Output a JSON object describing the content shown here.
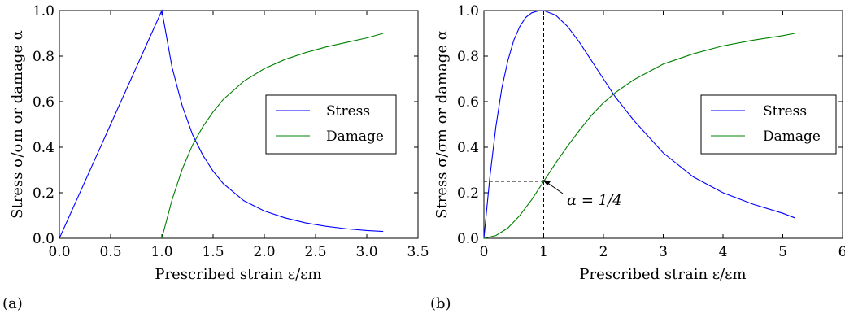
{
  "chart_data": [
    {
      "type": "line",
      "panel_label": "(a)",
      "xlabel": "Prescribed strain ε/εm",
      "ylabel": "Stress σ/σm or damage α",
      "xlim": [
        0.0,
        3.5
      ],
      "ylim": [
        0.0,
        1.0
      ],
      "xticks": [
        "0.0",
        "0.5",
        "1.0",
        "1.5",
        "2.0",
        "2.5",
        "3.0",
        "3.5"
      ],
      "yticks": [
        "0.0",
        "0.2",
        "0.4",
        "0.6",
        "0.8",
        "1.0"
      ],
      "grid": false,
      "legend_position": "center-right",
      "series": [
        {
          "name": "Stress",
          "color": "#0000ff",
          "x": [
            0.0,
            1.0,
            1.1,
            1.2,
            1.3,
            1.4,
            1.5,
            1.6,
            1.8,
            2.0,
            2.2,
            2.4,
            2.6,
            2.8,
            3.0,
            3.16
          ],
          "y": [
            0.0,
            1.0,
            0.75,
            0.58,
            0.455,
            0.365,
            0.295,
            0.24,
            0.165,
            0.12,
            0.09,
            0.068,
            0.053,
            0.042,
            0.034,
            0.03
          ]
        },
        {
          "name": "Damage",
          "color": "#008000",
          "x": [
            1.0,
            1.1,
            1.2,
            1.3,
            1.4,
            1.5,
            1.6,
            1.8,
            2.0,
            2.2,
            2.4,
            2.6,
            2.8,
            3.0,
            3.16
          ],
          "y": [
            0.0,
            0.17,
            0.305,
            0.41,
            0.49,
            0.555,
            0.61,
            0.69,
            0.745,
            0.785,
            0.815,
            0.84,
            0.86,
            0.88,
            0.9
          ]
        }
      ]
    },
    {
      "type": "line",
      "panel_label": "(b)",
      "xlabel": "Prescribed strain ε/εm",
      "ylabel": "Stress σ/σm or damage α",
      "xlim": [
        0,
        6
      ],
      "ylim": [
        0.0,
        1.0
      ],
      "xticks": [
        "0",
        "1",
        "2",
        "3",
        "4",
        "5",
        "6"
      ],
      "yticks": [
        "0.0",
        "0.2",
        "0.4",
        "0.6",
        "0.8",
        "1.0"
      ],
      "grid": false,
      "legend_position": "center-right",
      "annotation": {
        "text": "α = 1/4",
        "x": 1.0,
        "y": 0.25
      },
      "series": [
        {
          "name": "Stress",
          "color": "#0000ff",
          "x": [
            0.0,
            0.1,
            0.2,
            0.3,
            0.4,
            0.5,
            0.6,
            0.7,
            0.8,
            0.9,
            1.0,
            1.2,
            1.4,
            1.6,
            1.8,
            2.0,
            2.2,
            2.5,
            3.0,
            3.5,
            4.0,
            4.5,
            5.0,
            5.2
          ],
          "y": [
            0.0,
            0.27,
            0.49,
            0.66,
            0.78,
            0.87,
            0.93,
            0.97,
            0.99,
            0.998,
            1.0,
            0.98,
            0.93,
            0.86,
            0.78,
            0.7,
            0.62,
            0.52,
            0.375,
            0.27,
            0.2,
            0.15,
            0.11,
            0.09
          ]
        },
        {
          "name": "Damage",
          "color": "#008000",
          "x": [
            0.0,
            0.2,
            0.4,
            0.6,
            0.8,
            1.0,
            1.2,
            1.4,
            1.6,
            1.8,
            2.0,
            2.2,
            2.5,
            3.0,
            3.5,
            4.0,
            4.5,
            5.0,
            5.2
          ],
          "y": [
            0.0,
            0.012,
            0.045,
            0.1,
            0.17,
            0.25,
            0.33,
            0.405,
            0.475,
            0.54,
            0.595,
            0.64,
            0.695,
            0.765,
            0.81,
            0.845,
            0.87,
            0.89,
            0.9
          ]
        }
      ]
    }
  ]
}
